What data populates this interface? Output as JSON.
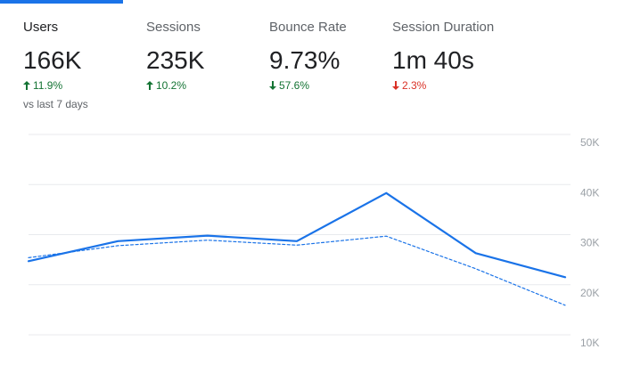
{
  "colors": {
    "accent": "#1a73e8",
    "positive": "#137333",
    "negative": "#d93025"
  },
  "metrics": [
    {
      "label": "Users",
      "value": "166K",
      "change": "11.9%",
      "direction": "up",
      "icon": "arrow-up-icon"
    },
    {
      "label": "Sessions",
      "value": "235K",
      "change": "10.2%",
      "direction": "up",
      "icon": "arrow-up-icon"
    },
    {
      "label": "Bounce Rate",
      "value": "9.73%",
      "change": "57.6%",
      "direction": "down",
      "icon": "arrow-down-icon"
    },
    {
      "label": "Session Duration",
      "value": "1m 40s",
      "change": "2.3%",
      "direction": "down",
      "icon": "arrow-down-icon"
    }
  ],
  "compare_note": "vs last 7 days",
  "chart_data": {
    "type": "line",
    "x": [
      0,
      1,
      2,
      3,
      4,
      5,
      6
    ],
    "ylim": [
      10000,
      50000
    ],
    "yticks": [
      "10K",
      "20K",
      "30K",
      "40K",
      "50K"
    ],
    "grid": true,
    "series": [
      {
        "style": "solid",
        "values": [
          24700,
          28700,
          29800,
          28700,
          38300,
          26300,
          21500
        ]
      },
      {
        "style": "dashed",
        "values": [
          25400,
          27800,
          28900,
          27900,
          29700,
          23200,
          15900
        ]
      }
    ]
  }
}
